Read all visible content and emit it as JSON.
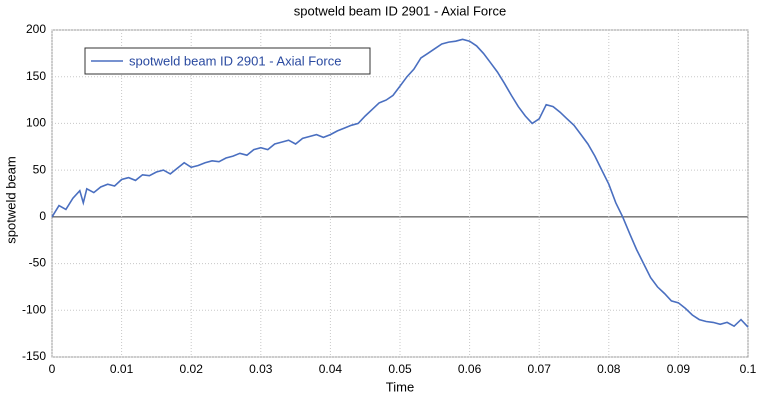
{
  "chart_data": {
    "type": "line",
    "title": "spotweld beam ID 2901 - Axial Force",
    "x_label": "Time",
    "y_label": "spotweld beam",
    "x": [
      0,
      0.001,
      0.002,
      0.003,
      0.004,
      0.0045,
      0.005,
      0.006,
      0.007,
      0.008,
      0.009,
      0.01,
      0.011,
      0.012,
      0.013,
      0.014,
      0.015,
      0.016,
      0.017,
      0.018,
      0.019,
      0.02,
      0.021,
      0.022,
      0.023,
      0.024,
      0.025,
      0.026,
      0.027,
      0.028,
      0.029,
      0.03,
      0.031,
      0.032,
      0.033,
      0.034,
      0.035,
      0.036,
      0.037,
      0.038,
      0.039,
      0.04,
      0.041,
      0.042,
      0.043,
      0.044,
      0.045,
      0.046,
      0.047,
      0.048,
      0.049,
      0.05,
      0.051,
      0.052,
      0.053,
      0.054,
      0.055,
      0.056,
      0.057,
      0.058,
      0.059,
      0.06,
      0.061,
      0.062,
      0.063,
      0.064,
      0.065,
      0.066,
      0.067,
      0.068,
      0.069,
      0.07,
      0.071,
      0.072,
      0.073,
      0.074,
      0.075,
      0.076,
      0.077,
      0.078,
      0.079,
      0.08,
      0.081,
      0.082,
      0.083,
      0.084,
      0.085,
      0.086,
      0.087,
      0.088,
      0.089,
      0.09,
      0.091,
      0.092,
      0.093,
      0.094,
      0.095,
      0.096,
      0.097,
      0.098,
      0.099,
      0.1
    ],
    "series": [
      {
        "name": "spotweld beam ID 2901 - Axial Force",
        "color": "#4a6fc0",
        "values": [
          0,
          12,
          8,
          20,
          28,
          15,
          30,
          26,
          32,
          35,
          33,
          40,
          42,
          39,
          45,
          44,
          48,
          50,
          46,
          52,
          58,
          53,
          55,
          58,
          60,
          59,
          63,
          65,
          68,
          66,
          72,
          74,
          72,
          78,
          80,
          82,
          78,
          84,
          86,
          88,
          85,
          88,
          92,
          95,
          98,
          100,
          108,
          115,
          122,
          125,
          130,
          140,
          150,
          158,
          170,
          175,
          180,
          185,
          187,
          188,
          190,
          188,
          183,
          175,
          165,
          155,
          143,
          130,
          118,
          108,
          100,
          105,
          120,
          118,
          112,
          105,
          98,
          88,
          78,
          65,
          50,
          35,
          15,
          0,
          -18,
          -35,
          -50,
          -65,
          -75,
          -82,
          -90,
          -92,
          -98,
          -105,
          -110,
          -112,
          -113,
          -115,
          -113,
          -117,
          -110,
          -118
        ]
      }
    ],
    "xlim": [
      0,
      0.1
    ],
    "xticks": [
      0,
      0.01,
      0.02,
      0.03,
      0.04,
      0.05,
      0.06,
      0.07,
      0.08,
      0.09,
      0.1
    ],
    "ylim": [
      -150,
      200
    ],
    "yticks": [
      -150,
      -100,
      -50,
      0,
      50,
      100,
      150,
      200
    ],
    "grid": true,
    "legend": "upper left"
  }
}
